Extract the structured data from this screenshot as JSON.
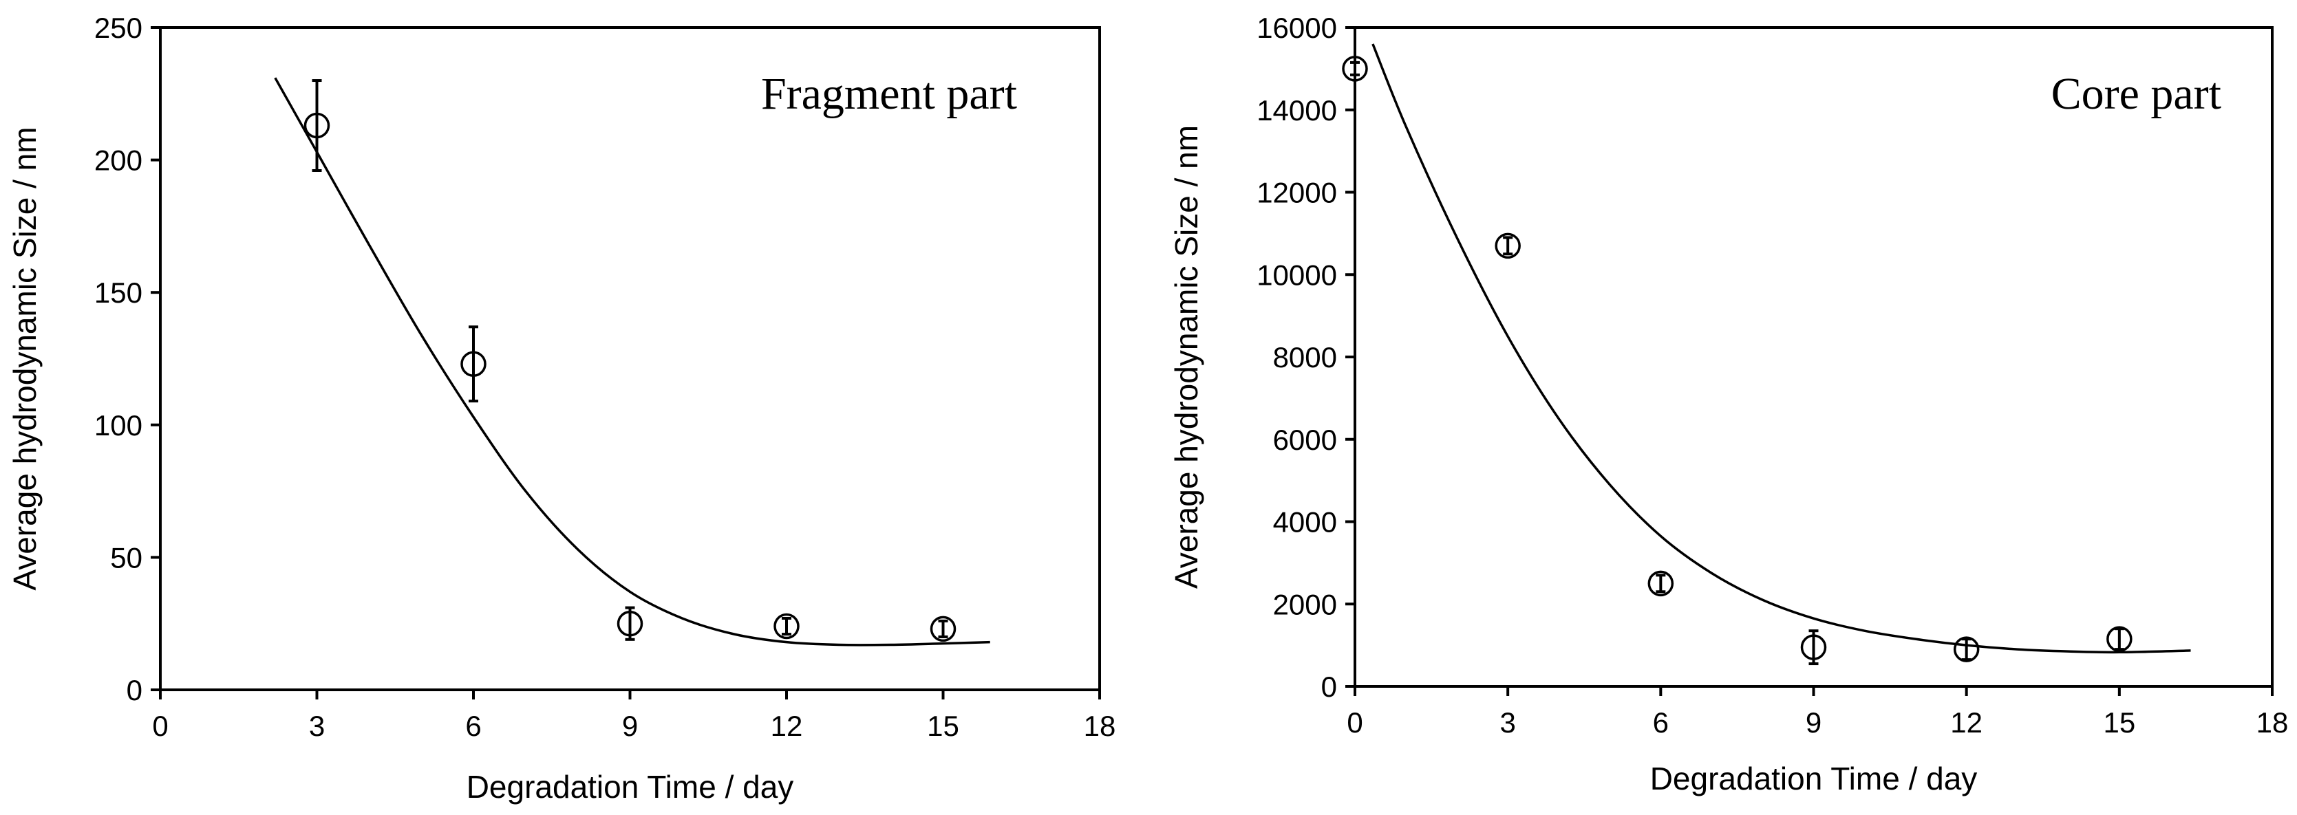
{
  "chart_data": [
    {
      "type": "scatter",
      "title": "Fragment part",
      "xlabel": "Degradation Time / day",
      "ylabel": "Average hydrodynamic Size / nm",
      "xlim": [
        0,
        18
      ],
      "ylim": [
        0,
        250
      ],
      "xticks": [
        0,
        3,
        6,
        9,
        12,
        15,
        18
      ],
      "yticks": [
        0,
        50,
        100,
        150,
        200,
        250
      ],
      "series": [
        {
          "kind": "points",
          "x": [
            3,
            6,
            9,
            12,
            15
          ],
          "y": [
            213,
            123,
            25,
            24,
            23
          ],
          "err": [
            17,
            14,
            6,
            3,
            3
          ]
        },
        {
          "kind": "fit-line",
          "x": [
            2.2,
            3,
            4,
            5,
            6,
            7,
            8,
            9,
            10,
            11,
            12,
            13,
            14,
            15,
            15.9
          ],
          "y": [
            231,
            203,
            168,
            134,
            103,
            75,
            53,
            37,
            27,
            21,
            18,
            17,
            17,
            17.5,
            18
          ]
        }
      ]
    },
    {
      "type": "scatter",
      "title": "Core part",
      "xlabel": "Degradation Time / day",
      "ylabel": "Average hydrodynamic Size / nm",
      "xlim": [
        0,
        18
      ],
      "ylim": [
        0,
        16000
      ],
      "xticks": [
        0,
        3,
        6,
        9,
        12,
        15,
        18
      ],
      "yticks": [
        0,
        2000,
        4000,
        6000,
        8000,
        10000,
        12000,
        14000,
        16000
      ],
      "series": [
        {
          "kind": "points",
          "x": [
            0,
            3,
            6,
            9,
            12,
            15
          ],
          "y": [
            15000,
            10700,
            2500,
            950,
            900,
            1150
          ],
          "err": [
            150,
            200,
            200,
            400,
            250,
            250
          ]
        },
        {
          "kind": "fit-line",
          "x": [
            0.35,
            1,
            2,
            3,
            4,
            5,
            6,
            7,
            8,
            9,
            10,
            11,
            12,
            13,
            14,
            15,
            16.4
          ],
          "y": [
            15600,
            13600,
            10900,
            8500,
            6500,
            4900,
            3650,
            2750,
            2100,
            1650,
            1350,
            1150,
            1000,
            900,
            850,
            830,
            870
          ]
        }
      ]
    }
  ]
}
